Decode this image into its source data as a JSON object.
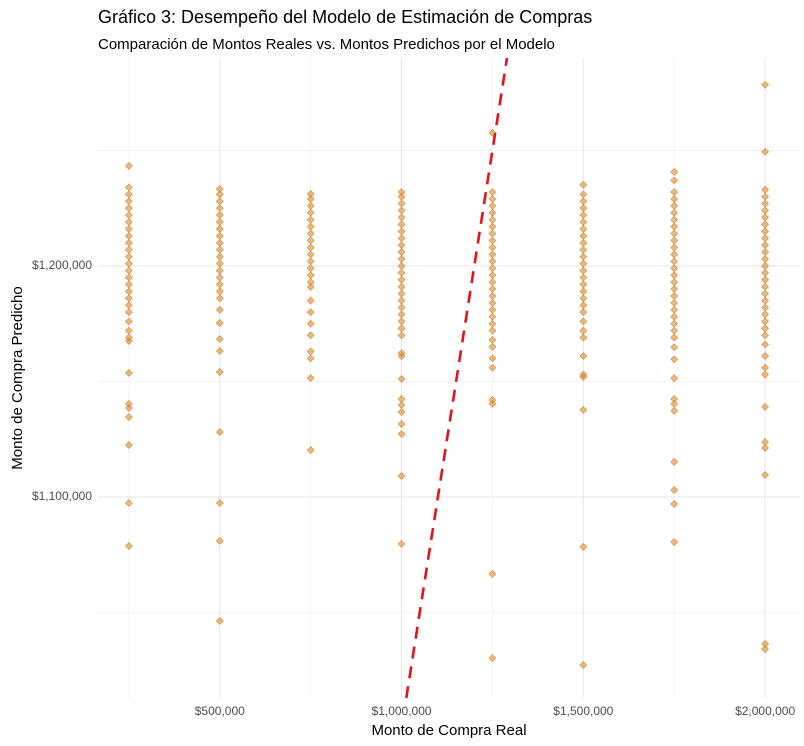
{
  "chart_data": {
    "type": "scatter",
    "title": "Gráfico 3: Desempeño del Modelo de Estimación de Compras",
    "subtitle": "Comparación de Montos Reales vs. Montos Predichos por el Modelo",
    "x_label": "Monto de Compra Real",
    "y_label": "Monto de Compra Predicho",
    "color": "#d4862a",
    "xlim": [
      165000,
      2096000
    ],
    "ylim": [
      1013000,
      1290000
    ],
    "xticks": [
      {
        "value": 500000,
        "label": "$500,000"
      },
      {
        "value": 1000000,
        "label": "$1,000,000"
      },
      {
        "value": 1500000,
        "label": "$1,500,000"
      },
      {
        "value": 2000000,
        "label": "$2,000,000"
      }
    ],
    "yticks": [
      {
        "value": 1100000,
        "label": "$1,100,000"
      },
      {
        "value": 1200000,
        "label": "$1,200,000"
      }
    ],
    "x_minor_gridlines": [
      250000,
      750000,
      1250000,
      1750000
    ],
    "y_minor_gridlines": [
      1050000,
      1150000,
      1250000
    ],
    "grid": true,
    "reference_line": {
      "slope": 1,
      "intercept": 0,
      "color": "#e3121b",
      "dashed": true
    },
    "series": [
      {
        "x": 250000,
        "values": [
          1243300,
          1234000,
          1231000,
          1228000,
          1225000,
          1222000,
          1219000,
          1216000,
          1213000,
          1210000,
          1207000,
          1204000,
          1201000,
          1198000,
          1195000,
          1192000,
          1189000,
          1186000,
          1183000,
          1180000,
          1176000,
          1172000,
          1169000,
          1167500,
          1153700,
          1140300,
          1138500,
          1134600,
          1122500,
          1097400,
          1078800
        ]
      },
      {
        "x": 500000,
        "values": [
          1233300,
          1231000,
          1228000,
          1225000,
          1222000,
          1219000,
          1216000,
          1213000,
          1210000,
          1207000,
          1204000,
          1201000,
          1198000,
          1195000,
          1192000,
          1189000,
          1186000,
          1181000,
          1175300,
          1168400,
          1163200,
          1154100,
          1128100,
          1097400,
          1081000,
          1046300
        ]
      },
      {
        "x": 750000,
        "values": [
          1231200,
          1229000,
          1226000,
          1223000,
          1220000,
          1217000,
          1214000,
          1211000,
          1208000,
          1205000,
          1202000,
          1199000,
          1196000,
          1193000,
          1190900,
          1185000,
          1180000,
          1175000,
          1170000,
          1163000,
          1160000,
          1151500,
          1120300
        ]
      },
      {
        "x": 1000000,
        "values": [
          1232000,
          1230000,
          1227000,
          1224000,
          1221000,
          1218000,
          1215000,
          1212000,
          1209000,
          1206000,
          1203000,
          1200000,
          1197000,
          1194000,
          1191000,
          1188000,
          1185000,
          1182000,
          1179000,
          1176000,
          1173000,
          1170000,
          1162300,
          1161000,
          1151100,
          1142400,
          1139800,
          1136800,
          1131600,
          1127300,
          1109100,
          1079700
        ]
      },
      {
        "x": 1250000,
        "values": [
          1257600,
          1232000,
          1229000,
          1226000,
          1223000,
          1220000,
          1217000,
          1214000,
          1211000,
          1208000,
          1205000,
          1202000,
          1199000,
          1196000,
          1193000,
          1190000,
          1187000,
          1184000,
          1181000,
          1178000,
          1175000,
          1172000,
          1168000,
          1165000,
          1160000,
          1156000,
          1142000,
          1140300,
          1066700,
          1030300
        ]
      },
      {
        "x": 1500000,
        "values": [
          1235100,
          1231000,
          1228000,
          1225000,
          1222000,
          1219000,
          1216000,
          1213000,
          1210000,
          1207000,
          1204000,
          1201000,
          1198000,
          1195000,
          1192000,
          1189000,
          1186000,
          1183000,
          1180000,
          1176000,
          1172000,
          1169000,
          1161000,
          1153000,
          1152000,
          1137700,
          1078400,
          1027300
        ]
      },
      {
        "x": 1750000,
        "values": [
          1240700,
          1237000,
          1232000,
          1229000,
          1226000,
          1223000,
          1220000,
          1217000,
          1214000,
          1211000,
          1208000,
          1205000,
          1202000,
          1199000,
          1196000,
          1193000,
          1190000,
          1187000,
          1184000,
          1181000,
          1178000,
          1175000,
          1172000,
          1169000,
          1164800,
          1159600,
          1151400,
          1142400,
          1140300,
          1137300,
          1115200,
          1103000,
          1097000,
          1080500
        ]
      },
      {
        "x": 2000000,
        "values": [
          1278400,
          1249400,
          1233000,
          1230000,
          1227000,
          1224000,
          1221000,
          1218000,
          1215000,
          1212000,
          1209000,
          1206000,
          1203000,
          1200000,
          1197000,
          1194000,
          1191000,
          1188000,
          1185000,
          1182000,
          1179000,
          1176000,
          1173000,
          1170000,
          1166000,
          1161000,
          1156000,
          1153000,
          1139000,
          1123800,
          1121200,
          1109500,
          1036400,
          1034200
        ]
      }
    ]
  }
}
